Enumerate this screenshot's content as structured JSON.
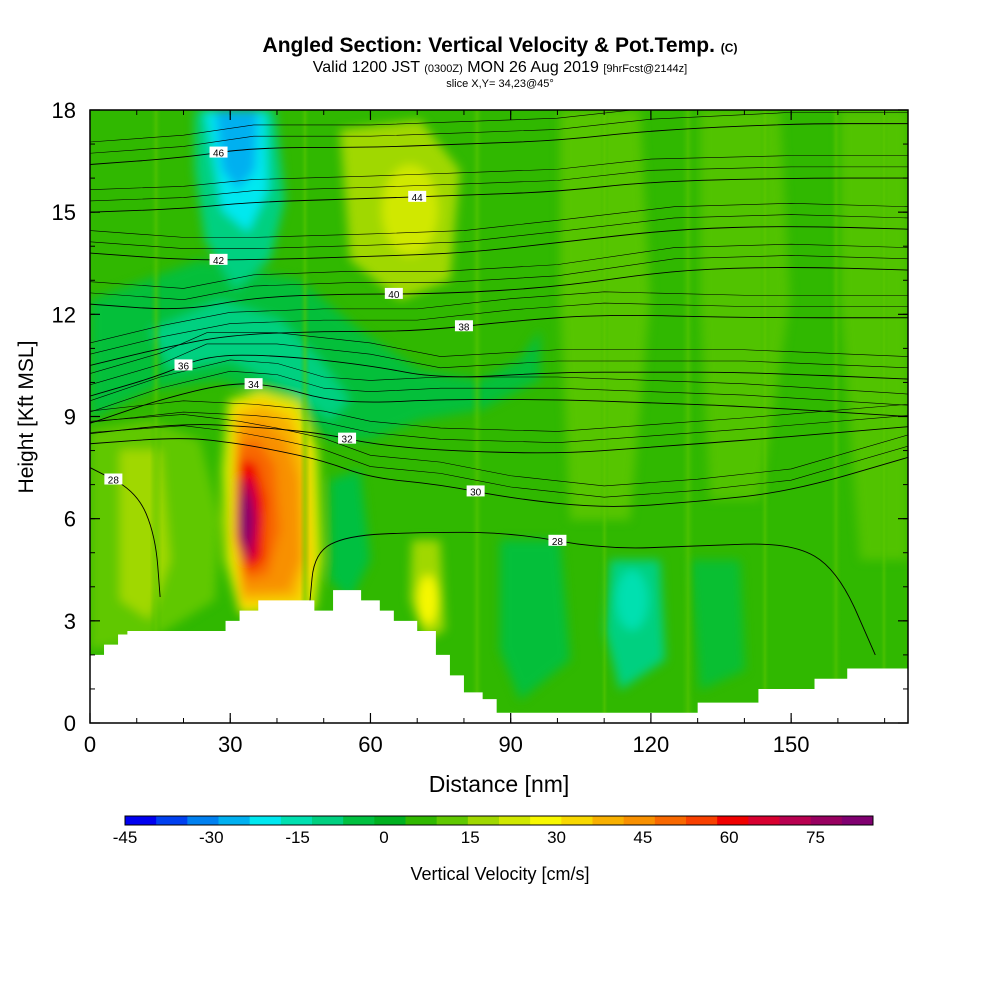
{
  "chart_data": {
    "type": "heatmap",
    "title_main": "Angled Section: Vertical Velocity & Pot.Temp.",
    "title_tag": "(C)",
    "subtitle_pre": "Valid 1200 JST",
    "subtitle_z": "(0300Z)",
    "subtitle_date": "MON 26 Aug 2019",
    "subtitle_fcst": "[9hrFcst@2144z]",
    "slice_label": "slice X,Y= 34,23@45°",
    "xlabel": "Distance [nm]",
    "ylabel": "Height [Kft MSL]",
    "xlim": [
      0,
      175
    ],
    "ylim": [
      0,
      18
    ],
    "x_ticks": [
      "0",
      "30",
      "60",
      "90",
      "120",
      "150"
    ],
    "y_ticks": [
      "0",
      "3",
      "6",
      "9",
      "12",
      "15",
      "18"
    ],
    "colorbar": {
      "label": "Vertical Velocity [cm/s]",
      "range": [
        -45,
        85
      ],
      "tick_labels": [
        "-45",
        "-30",
        "-15",
        "0",
        "15",
        "30",
        "45",
        "60",
        "75"
      ],
      "colors": [
        "#0000f0",
        "#0040f0",
        "#0080f0",
        "#00b0f0",
        "#00e8f0",
        "#00e0b0",
        "#00d080",
        "#00c040",
        "#00b020",
        "#30b800",
        "#60c800",
        "#a0d800",
        "#d0e800",
        "#f8f800",
        "#f8d800",
        "#f8b000",
        "#f89000",
        "#f86800",
        "#f84000",
        "#f00000",
        "#d80030",
        "#b80050",
        "#980060",
        "#800070"
      ]
    },
    "theta_contours": [
      {
        "label": "28",
        "points": [
          [
            0,
            7.5
          ],
          [
            10,
            6.8
          ],
          [
            14,
            5.5
          ],
          [
            15,
            3.7
          ]
        ]
      },
      {
        "label": "28",
        "points": [
          [
            47,
            3.5
          ],
          [
            48,
            5
          ],
          [
            55,
            5.5
          ],
          [
            70,
            5.6
          ],
          [
            90,
            5.6
          ],
          [
            110,
            5.1
          ],
          [
            130,
            5.2
          ],
          [
            150,
            5.3
          ],
          [
            160,
            4.5
          ],
          [
            168,
            2.0
          ]
        ]
      },
      {
        "label": "30",
        "points": [
          [
            0,
            8.2
          ],
          [
            20,
            8.4
          ],
          [
            32,
            8.2
          ],
          [
            40,
            8
          ],
          [
            50,
            7.7
          ],
          [
            60,
            7.2
          ],
          [
            75,
            7
          ],
          [
            90,
            6.6
          ],
          [
            110,
            6.3
          ],
          [
            130,
            6.5
          ],
          [
            150,
            6.8
          ],
          [
            175,
            7.8
          ]
        ]
      },
      {
        "label": "32",
        "points": [
          [
            0,
            8.5
          ],
          [
            20,
            8.8
          ],
          [
            35,
            8.7
          ],
          [
            50,
            8.5
          ],
          [
            60,
            8.2
          ],
          [
            75,
            8
          ],
          [
            100,
            7.9
          ],
          [
            120,
            8.1
          ],
          [
            140,
            8.3
          ],
          [
            175,
            8.7
          ]
        ]
      },
      {
        "label": "34",
        "points": [
          [
            0,
            8.8
          ],
          [
            15,
            9.5
          ],
          [
            30,
            10
          ],
          [
            40,
            9.9
          ],
          [
            50,
            9.5
          ],
          [
            60,
            9.4
          ],
          [
            75,
            9.5
          ],
          [
            100,
            9.5
          ],
          [
            120,
            9.4
          ],
          [
            140,
            9.3
          ],
          [
            175,
            9.0
          ]
        ]
      },
      {
        "label": "36",
        "points": [
          [
            0,
            9.6
          ],
          [
            15,
            10.2
          ],
          [
            25,
            10.8
          ],
          [
            40,
            10.8
          ],
          [
            60,
            10.5
          ],
          [
            75,
            10.1
          ],
          [
            100,
            10.3
          ],
          [
            120,
            10.3
          ],
          [
            140,
            10.3
          ],
          [
            175,
            10.1
          ]
        ]
      },
      {
        "label": "38",
        "points": [
          [
            0,
            10.5
          ],
          [
            15,
            11
          ],
          [
            30,
            11.4
          ],
          [
            50,
            11.5
          ],
          [
            70,
            11.5
          ],
          [
            90,
            11.8
          ],
          [
            110,
            12
          ],
          [
            140,
            11.9
          ],
          [
            175,
            11.9
          ]
        ]
      },
      {
        "label": "40",
        "points": [
          [
            0,
            12.3
          ],
          [
            20,
            12.1
          ],
          [
            35,
            12.5
          ],
          [
            55,
            12.6
          ],
          [
            75,
            12.6
          ],
          [
            100,
            12.8
          ],
          [
            125,
            13.3
          ],
          [
            150,
            13.4
          ],
          [
            175,
            13.3
          ]
        ]
      },
      {
        "label": "42",
        "points": [
          [
            0,
            13.8
          ],
          [
            20,
            13.6
          ],
          [
            35,
            13.6
          ],
          [
            60,
            13.7
          ],
          [
            80,
            13.8
          ],
          [
            100,
            14.1
          ],
          [
            125,
            14.5
          ],
          [
            150,
            14.6
          ],
          [
            175,
            14.5
          ]
        ]
      },
      {
        "label": "44",
        "points": [
          [
            0,
            15
          ],
          [
            20,
            15.1
          ],
          [
            35,
            15.3
          ],
          [
            60,
            15.4
          ],
          [
            80,
            15.5
          ],
          [
            100,
            15.6
          ],
          [
            120,
            15.9
          ],
          [
            150,
            16
          ],
          [
            175,
            16
          ]
        ]
      },
      {
        "label": "46",
        "points": [
          [
            0,
            16.4
          ],
          [
            20,
            16.6
          ],
          [
            35,
            16.9
          ],
          [
            60,
            16.9
          ],
          [
            80,
            17
          ],
          [
            100,
            17.1
          ],
          [
            120,
            17.4
          ],
          [
            150,
            17.6
          ],
          [
            175,
            17.6
          ]
        ]
      }
    ],
    "terrain_top_kft": [
      [
        0,
        2
      ],
      [
        3,
        2
      ],
      [
        3,
        2.3
      ],
      [
        6,
        2.3
      ],
      [
        6,
        2.6
      ],
      [
        8,
        2.6
      ],
      [
        8,
        2.7
      ],
      [
        29,
        2.7
      ],
      [
        29,
        3
      ],
      [
        32,
        3
      ],
      [
        32,
        3.3
      ],
      [
        36,
        3.3
      ],
      [
        36,
        3.6
      ],
      [
        48,
        3.6
      ],
      [
        48,
        3.3
      ],
      [
        52,
        3.3
      ],
      [
        52,
        3.9
      ],
      [
        58,
        3.9
      ],
      [
        58,
        3.6
      ],
      [
        62,
        3.6
      ],
      [
        62,
        3.3
      ],
      [
        65,
        3.3
      ],
      [
        65,
        3
      ],
      [
        70,
        3
      ],
      [
        70,
        2.7
      ],
      [
        74,
        2.7
      ],
      [
        74,
        2
      ],
      [
        77,
        2
      ],
      [
        77,
        1.4
      ],
      [
        80,
        1.4
      ],
      [
        80,
        0.9
      ],
      [
        84,
        0.9
      ],
      [
        84,
        0.7
      ],
      [
        87,
        0.7
      ],
      [
        87,
        0.3
      ],
      [
        130,
        0.3
      ],
      [
        130,
        0.6
      ],
      [
        143,
        0.6
      ],
      [
        143,
        1
      ],
      [
        155,
        1
      ],
      [
        155,
        1.3
      ],
      [
        162,
        1.3
      ],
      [
        162,
        1.6
      ],
      [
        175,
        1.6
      ]
    ]
  }
}
